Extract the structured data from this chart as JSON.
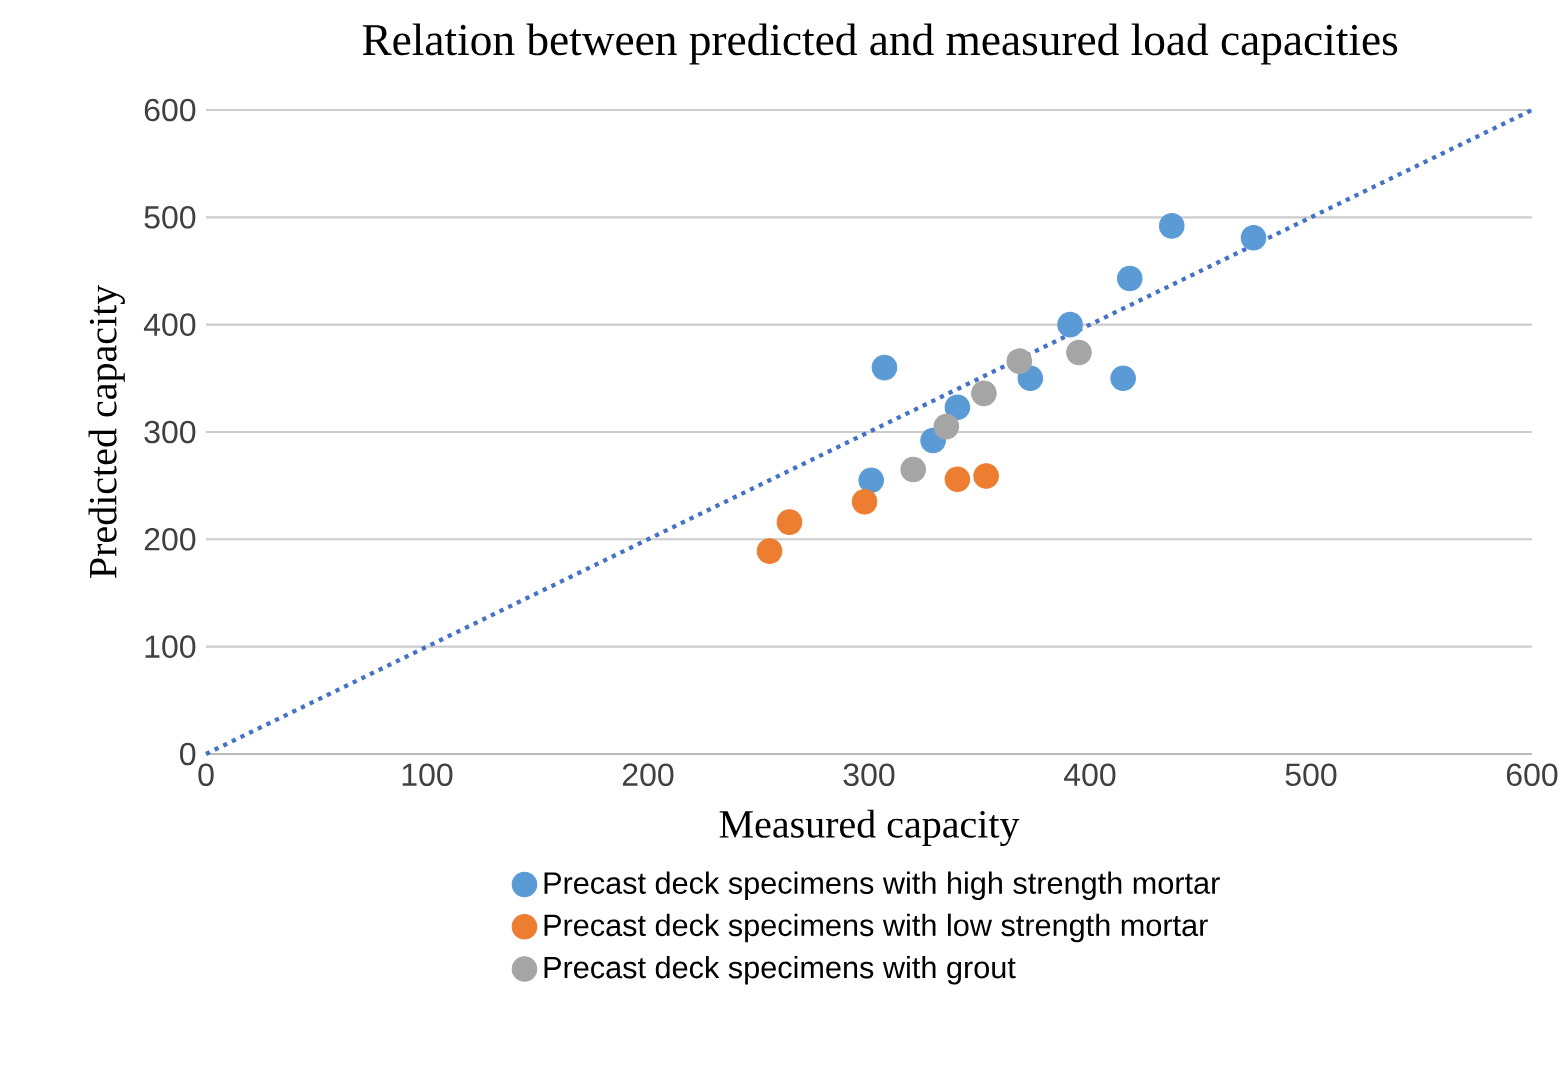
{
  "chart_data": {
    "type": "scatter",
    "title": "Relation between predicted and measured load capacities",
    "xlabel": "Measured capacity",
    "ylabel": "Predicted capacity",
    "xlim": [
      0,
      600
    ],
    "ylim": [
      0,
      600
    ],
    "xticks": [
      0,
      100,
      200,
      300,
      400,
      500,
      600
    ],
    "yticks": [
      0,
      100,
      200,
      300,
      400,
      500,
      600
    ],
    "grid": "y",
    "legend": "bottom",
    "series": [
      {
        "name": "Precast deck specimens with high strength mortar",
        "color": "#5b9bd5",
        "marker": "circle",
        "x": [
          301,
          307,
          329,
          340,
          373,
          391,
          415,
          418,
          437,
          474
        ],
        "values": [
          255,
          360,
          292,
          323,
          350,
          400,
          350,
          443,
          492,
          481
        ]
      },
      {
        "name": "Precast deck specimens with low strength mortar",
        "color": "#ed7d31",
        "marker": "circle",
        "x": [
          255,
          264,
          298,
          340,
          353
        ],
        "values": [
          189,
          216,
          235,
          256,
          259
        ]
      },
      {
        "name": "Precast deck specimens with grout",
        "color": "#a5a5a5",
        "marker": "circle",
        "x": [
          320,
          335,
          352,
          368,
          395
        ],
        "values": [
          265,
          305,
          336,
          366,
          374
        ]
      },
      {
        "type": "line",
        "color": "#4472c4",
        "line_style": "dotted",
        "marker": "none",
        "x": [
          0,
          600
        ],
        "values": [
          0,
          600
        ]
      }
    ]
  }
}
